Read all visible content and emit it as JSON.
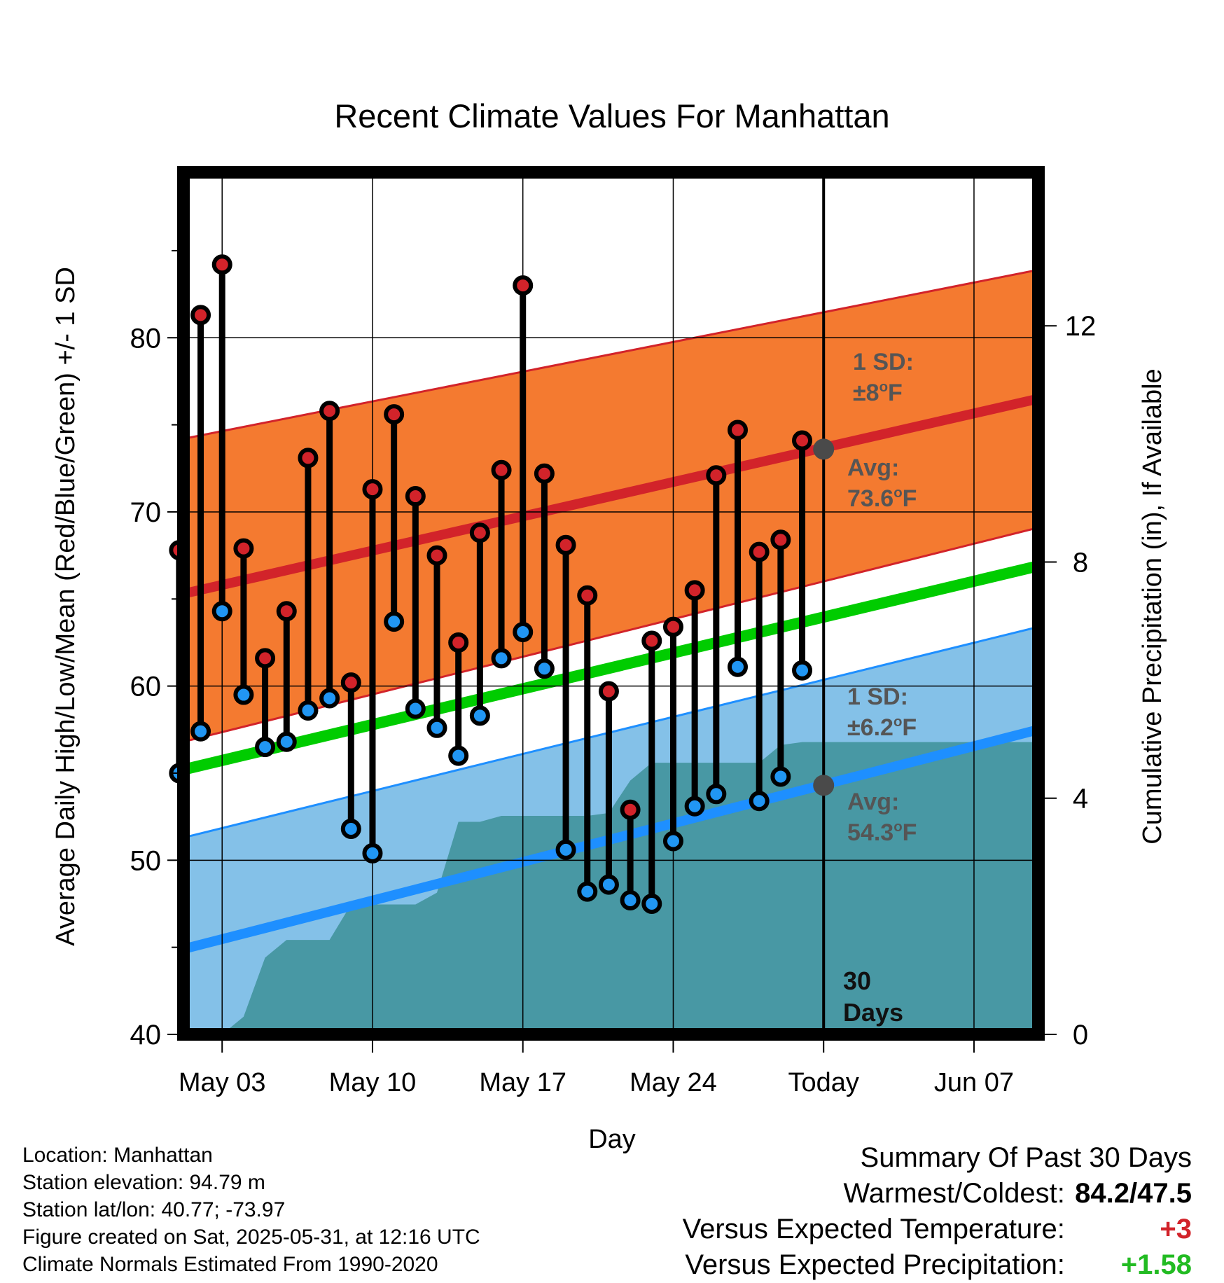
{
  "chart_data": {
    "type": "line",
    "title": "Recent Climate Values For Manhattan",
    "xlabel": "Day",
    "ylabel_left": "Average Daily High/Low/Mean (Red/Blue/Green) +/- 1 SD",
    "ylabel_right": "Cumulative Precipitation (in), If Available",
    "x_range_days": [
      -29.8,
      10
    ],
    "ylim": [
      40,
      89.5
    ],
    "y_ticks": [
      40,
      50,
      60,
      70,
      80
    ],
    "precip_ylim": [
      0,
      14.6
    ],
    "precip_ticks": [
      0,
      4,
      8,
      12
    ],
    "x_ticks": [
      {
        "day": -28,
        "label": "May 03"
      },
      {
        "day": -21,
        "label": "May 10"
      },
      {
        "day": -14,
        "label": "May 17"
      },
      {
        "day": -7,
        "label": "May 24"
      },
      {
        "day": 0,
        "label": "Today"
      },
      {
        "day": 7,
        "label": "Jun 07"
      }
    ],
    "today_label": "Today",
    "days_label": [
      "30",
      "Days"
    ],
    "normal_high": {
      "start": 65.3,
      "end": 76.5
    },
    "normal_high_sd_upper": {
      "start": 74.2,
      "end": 83.9
    },
    "normal_high_sd_lower": {
      "start": 56.8,
      "end": 69.1
    },
    "normal_mean": {
      "start": 55.2,
      "end": 66.9
    },
    "normal_low": {
      "start": 44.9,
      "end": 57.5
    },
    "normal_low_sd_upper": {
      "start": 51.3,
      "end": 63.4
    },
    "normal_low_sd_lower": {
      "start": 38.7,
      "end": 51.6
    },
    "daily": [
      {
        "day": -30,
        "high": 67.8,
        "low": 55.0
      },
      {
        "day": -29,
        "high": 81.3,
        "low": 57.4
      },
      {
        "day": -28,
        "high": 84.2,
        "low": 64.3
      },
      {
        "day": -27,
        "high": 67.9,
        "low": 59.5
      },
      {
        "day": -26,
        "high": 61.6,
        "low": 56.5
      },
      {
        "day": -25,
        "high": 64.3,
        "low": 56.8
      },
      {
        "day": -24,
        "high": 73.1,
        "low": 58.6
      },
      {
        "day": -23,
        "high": 75.8,
        "low": 59.3
      },
      {
        "day": -22,
        "high": 60.2,
        "low": 51.8
      },
      {
        "day": -21,
        "high": 71.3,
        "low": 50.4
      },
      {
        "day": -20,
        "high": 75.6,
        "low": 63.7
      },
      {
        "day": -19,
        "high": 70.9,
        "low": 58.7
      },
      {
        "day": -18,
        "high": 67.5,
        "low": 57.6
      },
      {
        "day": -17,
        "high": 62.5,
        "low": 56.0
      },
      {
        "day": -16,
        "high": 68.8,
        "low": 58.3
      },
      {
        "day": -15,
        "high": 72.4,
        "low": 61.6
      },
      {
        "day": -14,
        "high": 83.0,
        "low": 63.1
      },
      {
        "day": -13,
        "high": 72.2,
        "low": 61.0
      },
      {
        "day": -12,
        "high": 68.1,
        "low": 50.6
      },
      {
        "day": -11,
        "high": 65.2,
        "low": 48.2
      },
      {
        "day": -10,
        "high": 59.7,
        "low": 48.6
      },
      {
        "day": -9,
        "high": 52.9,
        "low": 47.7
      },
      {
        "day": -8,
        "high": 62.6,
        "low": 47.5
      },
      {
        "day": -7,
        "high": 63.4,
        "low": 51.1
      },
      {
        "day": -6,
        "high": 65.5,
        "low": 53.1
      },
      {
        "day": -5,
        "high": 72.1,
        "low": 53.8
      },
      {
        "day": -4,
        "high": 74.7,
        "low": 61.1
      },
      {
        "day": -3,
        "high": 67.7,
        "low": 53.4
      },
      {
        "day": -2,
        "high": 68.4,
        "low": 54.8
      },
      {
        "day": -1,
        "high": 74.1,
        "low": 60.9
      }
    ],
    "precip_cumulative": [
      {
        "day": -30,
        "value": 0.0
      },
      {
        "day": -29,
        "value": 0.0
      },
      {
        "day": -28,
        "value": 0.0
      },
      {
        "day": -27,
        "value": 0.3
      },
      {
        "day": -26,
        "value": 1.3
      },
      {
        "day": -25,
        "value": 1.6
      },
      {
        "day": -24,
        "value": 1.6
      },
      {
        "day": -23,
        "value": 1.6
      },
      {
        "day": -22,
        "value": 2.2
      },
      {
        "day": -21,
        "value": 2.2
      },
      {
        "day": -20,
        "value": 2.2
      },
      {
        "day": -19,
        "value": 2.2
      },
      {
        "day": -18,
        "value": 2.4
      },
      {
        "day": -17,
        "value": 3.6
      },
      {
        "day": -16,
        "value": 3.6
      },
      {
        "day": -15,
        "value": 3.7
      },
      {
        "day": -14,
        "value": 3.7
      },
      {
        "day": -13,
        "value": 3.7
      },
      {
        "day": -12,
        "value": 3.7
      },
      {
        "day": -11,
        "value": 3.7
      },
      {
        "day": -10,
        "value": 3.75
      },
      {
        "day": -9,
        "value": 4.3
      },
      {
        "day": -8,
        "value": 4.6
      },
      {
        "day": -7,
        "value": 4.6
      },
      {
        "day": -6,
        "value": 4.6
      },
      {
        "day": -5,
        "value": 4.6
      },
      {
        "day": -4,
        "value": 4.6
      },
      {
        "day": -3,
        "value": 4.6
      },
      {
        "day": -2,
        "value": 4.9
      },
      {
        "day": -1,
        "value": 4.95
      },
      {
        "day": 10,
        "value": 4.95
      }
    ],
    "annotations": {
      "high_sd_label": [
        "1 SD:",
        "±8°F"
      ],
      "high_avg_label": [
        "Avg:",
        "73.6°F"
      ],
      "low_sd_label": [
        "1 SD:",
        "±6.2°F"
      ],
      "low_avg_label": [
        "Avg:",
        "54.3°F"
      ],
      "high_avg_today": 73.6,
      "low_avg_today": 54.3
    },
    "colors": {
      "high_band": "#f47a30",
      "high_line": "#d2232a",
      "mean_line": "#00cc00",
      "low_band": "#84c1e8",
      "low_line": "#1e8fff",
      "precip": "#4898a4",
      "annotation_text": "#555555",
      "high_dot": "#d2232a",
      "low_dot": "#2196f3"
    }
  },
  "info": {
    "location": "Location: Manhattan",
    "elevation": "Station elevation: 94.79 m",
    "latlon": "Station lat/lon: 40.77; -73.97",
    "created": "Figure created on Sat, 2025-05-31, at 12:16 UTC",
    "normals": "Climate Normals Estimated From 1990-2020"
  },
  "summary": {
    "title": "Summary Of Past 30 Days",
    "warm_cold_label": "Warmest/Coldest:",
    "warm_cold_value": "84.2/47.5",
    "temp_label": "Versus Expected Temperature:",
    "temp_value": "+3",
    "temp_color": "#d2232a",
    "precip_label": "Versus Expected Precipitation:",
    "precip_value": "+1.58",
    "precip_color": "#22bb22"
  }
}
